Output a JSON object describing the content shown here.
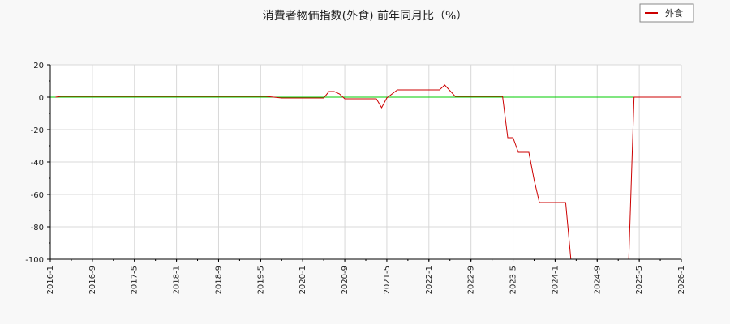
{
  "chart_data": {
    "type": "line",
    "title": "消費者物価指数(外食) 前年同月比（%）",
    "xlabel": "",
    "ylabel": "",
    "ylim": [
      -100,
      20
    ],
    "yticks": [
      20,
      0,
      -20,
      -40,
      -60,
      -80,
      -100
    ],
    "xticks": [
      "2016-1",
      "2016-9",
      "2017-5",
      "2018-1",
      "2018-9",
      "2019-5",
      "2020-1",
      "2020-9",
      "2021-5",
      "2022-1",
      "2022-9",
      "2023-5",
      "2024-1",
      "2024-9",
      "2025-5",
      "2026-1"
    ],
    "grid": true,
    "legend": {
      "position": "top-right",
      "entries": [
        "外食"
      ]
    },
    "reference_line": {
      "y": 0,
      "color": "#00cc00"
    },
    "series": [
      {
        "name": "外食",
        "color": "#cc0000",
        "x": [
          "2016-02",
          "2016-03",
          "2016-06",
          "2016-12",
          "2017-06",
          "2017-12",
          "2018-06",
          "2018-12",
          "2019-06",
          "2019-09",
          "2019-12",
          "2020-03",
          "2020-05",
          "2020-06",
          "2020-07",
          "2020-08",
          "2020-09",
          "2020-12",
          "2021-03",
          "2021-04",
          "2021-05",
          "2021-07",
          "2021-10",
          "2022-01",
          "2022-02",
          "2022-03",
          "2022-04",
          "2022-06",
          "2022-12",
          "2023-03",
          "2023-04",
          "2023-05",
          "2023-06",
          "2023-07",
          "2023-08",
          "2023-09",
          "2023-10",
          "2023-12",
          "2024-03",
          "2024-04",
          "2025-03",
          "2025-04",
          "2025-06",
          "2025-12",
          "2026-01"
        ],
        "y": [
          0,
          0.5,
          0.5,
          0.5,
          0.5,
          0.5,
          0.5,
          0.5,
          0.5,
          -0.5,
          -0.5,
          -0.5,
          -0.5,
          3.5,
          3.5,
          2,
          -1,
          -1,
          -1,
          -6.5,
          -0.5,
          4.5,
          4.5,
          4.5,
          4.5,
          4.5,
          7.5,
          0.5,
          0.5,
          0.5,
          -25,
          -25,
          -34,
          -34,
          -34,
          -51,
          -65,
          -65,
          -65,
          -105,
          -105,
          0,
          0,
          0,
          0
        ]
      }
    ]
  }
}
